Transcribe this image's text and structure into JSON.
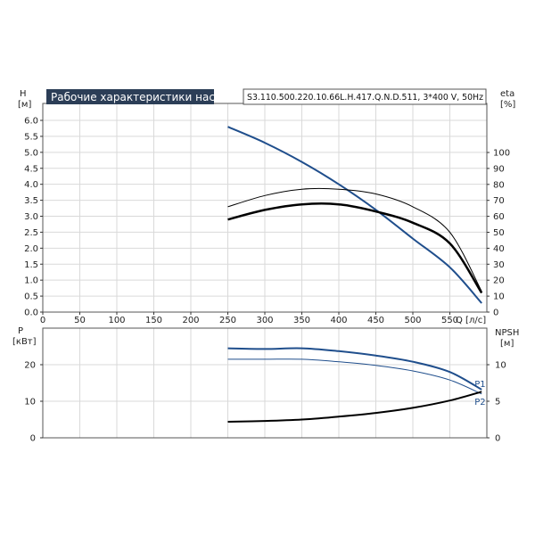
{
  "chart_data": [
    {
      "type": "line",
      "title": "Рабочие характеристики насоса",
      "model": "S3.110.500.220.10.66L.H.417.Q.N.D.511, 3*400 V, 50Hz",
      "xlabel": "Q [л/с]",
      "ylabel_left": "H",
      "ylabel_left_unit": "[м]",
      "ylabel_right": "eta",
      "ylabel_right_unit": "[%]",
      "xlim": [
        0,
        600
      ],
      "ylim_left": [
        0,
        6.0
      ],
      "ylim_right": [
        0,
        120
      ],
      "x_ticks": [
        "0",
        "50",
        "100",
        "150",
        "200",
        "250",
        "300",
        "350",
        "400",
        "450",
        "500",
        "550"
      ],
      "y_ticks_left": [
        "0.0",
        "0.5",
        "1.0",
        "1.5",
        "2.0",
        "2.5",
        "3.0",
        "3.5",
        "4.0",
        "4.5",
        "5.0",
        "5.5",
        "6.0"
      ],
      "y_ticks_right": [
        "0",
        "10",
        "20",
        "30",
        "40",
        "50",
        "60",
        "70",
        "80",
        "90",
        "100"
      ],
      "grid": true,
      "series": [
        {
          "axis": "left",
          "color": "#1f4e8c",
          "x": [
            250,
            300,
            350,
            400,
            450,
            500,
            550,
            593
          ],
          "y": [
            5.8,
            5.3,
            4.7,
            4.0,
            3.2,
            2.3,
            1.4,
            0.28
          ]
        },
        {
          "axis": "right",
          "color": "#000000",
          "x": [
            250,
            300,
            350,
            400,
            450,
            500,
            550,
            593
          ],
          "y": [
            66,
            73,
            77,
            77,
            74,
            66,
            50,
            13
          ]
        },
        {
          "axis": "right",
          "color": "#000000",
          "x": [
            250,
            300,
            350,
            400,
            450,
            500,
            550,
            593
          ],
          "y": [
            58,
            64,
            67.5,
            67.5,
            63,
            56,
            43,
            12
          ]
        }
      ]
    },
    {
      "type": "line",
      "ylabel_left": "P",
      "ylabel_left_unit": "[кВт]",
      "ylabel_right": "NPSH",
      "ylabel_right_unit": "[м]",
      "xlim": [
        0,
        600
      ],
      "ylim_left": [
        0,
        30
      ],
      "ylim_right": [
        0,
        15
      ],
      "y_ticks_left": [
        "0",
        "10",
        "20"
      ],
      "y_ticks_right": [
        "0",
        "5",
        "10"
      ],
      "grid": true,
      "series": [
        {
          "name": "P1",
          "axis": "left",
          "color": "#1f4e8c",
          "x": [
            250,
            300,
            350,
            400,
            450,
            500,
            550,
            593
          ],
          "y": [
            24.5,
            24.3,
            24.5,
            23.7,
            22.5,
            20.8,
            18.0,
            13.2
          ]
        },
        {
          "name": "P2",
          "axis": "left",
          "color": "#1f4e8c",
          "x": [
            250,
            300,
            350,
            400,
            450,
            500,
            550,
            593
          ],
          "y": [
            21.5,
            21.5,
            21.5,
            20.8,
            19.8,
            18.3,
            15.8,
            12.0
          ]
        },
        {
          "axis": "right",
          "color": "#000000",
          "x": [
            250,
            300,
            350,
            400,
            450,
            500,
            550,
            593
          ],
          "y": [
            2.2,
            2.3,
            2.5,
            2.9,
            3.4,
            4.1,
            5.1,
            6.3
          ]
        }
      ]
    }
  ]
}
